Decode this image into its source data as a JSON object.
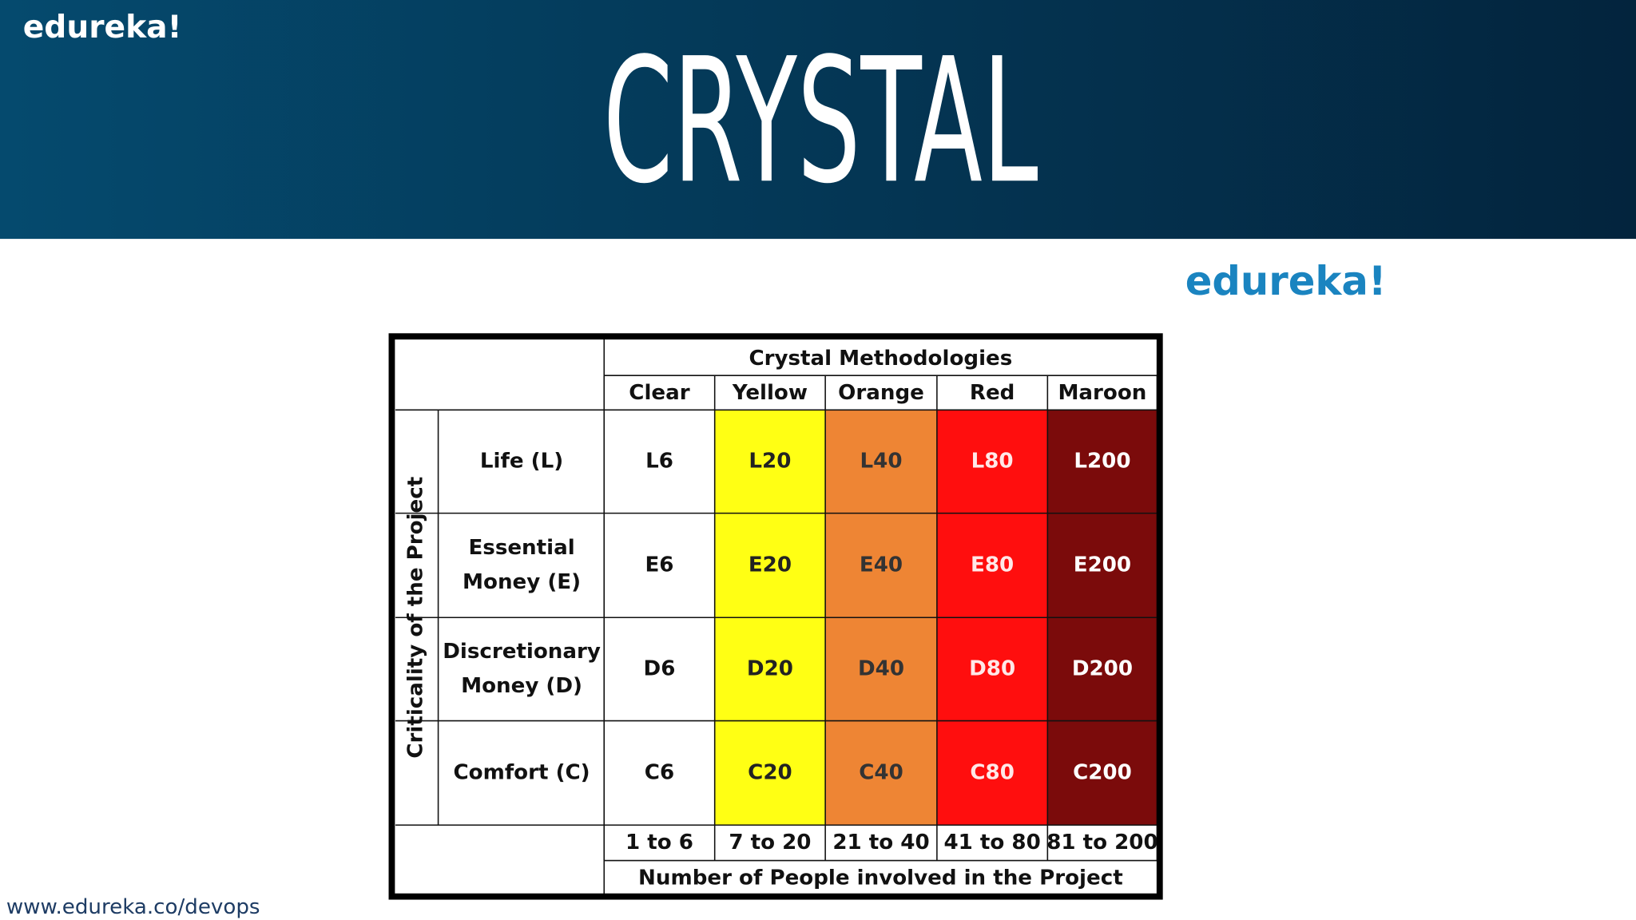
{
  "header": {
    "logo": "edureka!",
    "title": "CRYSTAL"
  },
  "logo": "edureka!",
  "table": {
    "title": "Crystal Methodologies",
    "columns": [
      {
        "name": "Clear",
        "color": "#ffffff",
        "text_color": "#111111"
      },
      {
        "name": "Yellow",
        "color": "#ffff14",
        "text_color": "#222222"
      },
      {
        "name": "Orange",
        "color": "#ee8534",
        "text_color": "#333333"
      },
      {
        "name": "Red",
        "color": "#ff0e0e",
        "text_color": "#ffe8e8"
      },
      {
        "name": "Maroon",
        "color": "#7b0b0b",
        "text_color": "#ffffff"
      }
    ],
    "side_label": "Criticality of the Project",
    "rows": [
      {
        "label": [
          "Life (L)"
        ],
        "cells": [
          "L6",
          "L20",
          "L40",
          "L80",
          "L200"
        ]
      },
      {
        "label": [
          "Essential",
          "Money (E)"
        ],
        "cells": [
          "E6",
          "E20",
          "E40",
          "E80",
          "E200"
        ]
      },
      {
        "label": [
          "Discretionary",
          "Money (D)"
        ],
        "cells": [
          "D6",
          "D20",
          "D40",
          "D80",
          "D200"
        ]
      },
      {
        "label": [
          "Comfort (C)"
        ],
        "cells": [
          "C6",
          "C20",
          "C40",
          "C80",
          "C200"
        ]
      }
    ],
    "counts": [
      "1 to 6",
      "7 to 20",
      "21 to 40",
      "41 to 80",
      "81 to 200"
    ],
    "footer": "Number of People involved in the Project"
  },
  "url": "www.edureka.co/devops"
}
